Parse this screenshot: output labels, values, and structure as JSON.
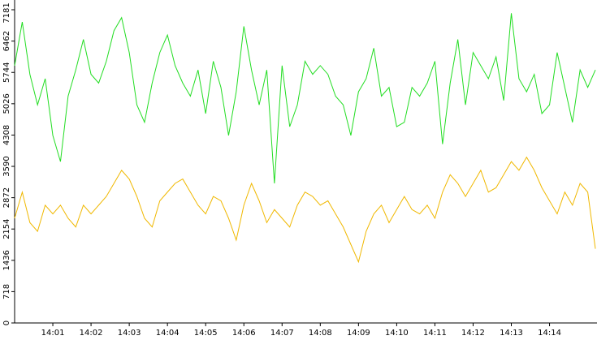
{
  "chart_data": {
    "type": "line",
    "x": [
      0,
      0.2,
      0.4,
      0.6,
      0.8,
      1,
      1.2,
      1.4,
      1.6,
      1.8,
      2,
      2.2,
      2.4,
      2.6,
      2.8,
      3,
      3.2,
      3.4,
      3.6,
      3.8,
      4,
      4.2,
      4.4,
      4.6,
      4.8,
      5,
      5.2,
      5.4,
      5.6,
      5.8,
      6,
      6.2,
      6.4,
      6.6,
      6.8,
      7,
      7.2,
      7.4,
      7.6,
      7.8,
      8,
      8.2,
      8.4,
      8.6,
      8.8,
      9,
      9.2,
      9.4,
      9.6,
      9.8,
      10,
      10.2,
      10.4,
      10.6,
      10.8,
      11,
      11.2,
      11.4,
      11.6,
      11.8,
      12,
      12.2,
      12.4,
      12.6,
      12.8,
      13,
      13.2,
      13.4,
      13.6,
      13.8,
      14,
      14.2,
      14.4,
      14.6,
      14.8,
      15,
      15.2
    ],
    "series": [
      {
        "color": "#22dd22",
        "values": [
          5900,
          6900,
          5700,
          5000,
          5600,
          4300,
          3700,
          5200,
          5800,
          6500,
          5700,
          5500,
          6000,
          6700,
          7000,
          6200,
          5000,
          4600,
          5500,
          6200,
          6600,
          5900,
          5500,
          5200,
          5800,
          4800,
          6000,
          5400,
          4300,
          5300,
          6800,
          5800,
          5000,
          5800,
          3200,
          5900,
          4500,
          5000,
          6000,
          5700,
          5900,
          5700,
          5200,
          5000,
          4300,
          5300,
          5600,
          6300,
          5200,
          5400,
          4500,
          4600,
          5400,
          5200,
          5500,
          6000,
          4100,
          5500,
          6500,
          5000,
          6200,
          5900,
          5600,
          6100,
          5100,
          7100,
          5600,
          5300,
          5700,
          4800,
          5000,
          6200,
          5400,
          4600,
          5800,
          5400,
          5800
        ]
      },
      {
        "color": "#f0b800",
        "values": [
          2400,
          3000,
          2300,
          2100,
          2700,
          2500,
          2700,
          2400,
          2200,
          2700,
          2500,
          2700,
          2900,
          3200,
          3500,
          3300,
          2900,
          2400,
          2200,
          2800,
          3000,
          3200,
          3300,
          3000,
          2700,
          2500,
          2900,
          2800,
          2400,
          1900,
          2700,
          3200,
          2800,
          2300,
          2600,
          2400,
          2200,
          2700,
          3000,
          2900,
          2700,
          2800,
          2500,
          2200,
          1800,
          1400,
          2100,
          2500,
          2700,
          2300,
          2600,
          2900,
          2600,
          2500,
          2700,
          2400,
          3000,
          3400,
          3200,
          2900,
          3200,
          3500,
          3000,
          3100,
          3400,
          3700,
          3500,
          3800,
          3500,
          3100,
          2800,
          2500,
          3000,
          2700,
          3200,
          3000,
          1700
        ]
      }
    ],
    "xlim": [
      0,
      15.2
    ],
    "xticks": [
      {
        "value": 1,
        "label": "14:01"
      },
      {
        "value": 2,
        "label": "14:02"
      },
      {
        "value": 3,
        "label": "14:03"
      },
      {
        "value": 4,
        "label": "14:04"
      },
      {
        "value": 5,
        "label": "14:05"
      },
      {
        "value": 6,
        "label": "14:06"
      },
      {
        "value": 7,
        "label": "14:07"
      },
      {
        "value": 8,
        "label": "14:08"
      },
      {
        "value": 9,
        "label": "14:09"
      },
      {
        "value": 10,
        "label": "14:10"
      },
      {
        "value": 11,
        "label": "14:11"
      },
      {
        "value": 12,
        "label": "14:12"
      },
      {
        "value": 13,
        "label": "14:13"
      },
      {
        "value": 14,
        "label": "14:14"
      }
    ],
    "ylim": [
      0,
      7181
    ],
    "yticks": [
      0,
      718,
      1436,
      2154,
      2872,
      3590,
      4308,
      5026,
      5744,
      6462,
      7181
    ]
  }
}
